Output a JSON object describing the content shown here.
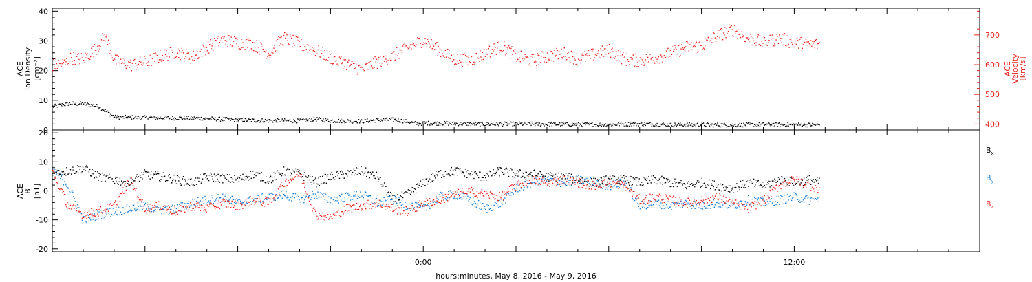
{
  "xlabel": "hours:minutes, May  8, 2016 - May  9, 2016",
  "x_axis": {
    "range_hours": [
      -12,
      18
    ],
    "major_ticks": [
      {
        "t": 0,
        "label": "0:00"
      },
      {
        "t": 12,
        "label": "12:00"
      }
    ]
  },
  "colors": {
    "black": "#000000",
    "red": "#e8231f",
    "blue": "#1a7fd4"
  },
  "chart_data": [
    {
      "type": "scatter",
      "panel": "top",
      "left_axis": {
        "label_lines": [
          "ACE",
          "Ion Density",
          "[cm⁻³]"
        ],
        "ylim": [
          0,
          41
        ],
        "ticks": [
          0,
          10,
          20,
          30,
          40
        ]
      },
      "right_axis": {
        "label_lines": [
          "ACE",
          "Velocity",
          "[km/s]"
        ],
        "ylim": [
          380,
          790
        ],
        "ticks": [
          400,
          500,
          600,
          700
        ]
      },
      "series": [
        {
          "color": "black",
          "axis": "left",
          "points": [
            [
              -12.0,
              8
            ],
            [
              -11.5,
              9
            ],
            [
              -11.0,
              9
            ],
            [
              -10.5,
              8
            ],
            [
              -10.0,
              4.5
            ],
            [
              -9.0,
              4.3
            ],
            [
              -8.0,
              4.2
            ],
            [
              -7.0,
              4.0
            ],
            [
              -6.0,
              3.5
            ],
            [
              -5.0,
              3.3
            ],
            [
              -4.0,
              3.2
            ],
            [
              -3.5,
              3.8
            ],
            [
              -3.0,
              3.3
            ],
            [
              -2.0,
              3.1
            ],
            [
              -1.5,
              3.5
            ],
            [
              -1.0,
              3.6
            ],
            [
              -0.5,
              3.0
            ],
            [
              -0.2,
              2.2
            ],
            [
              0.0,
              2.5
            ],
            [
              1.0,
              2.3
            ],
            [
              2.0,
              2.1
            ],
            [
              3.0,
              2.2
            ],
            [
              4.0,
              2.1
            ],
            [
              5.0,
              2.0
            ],
            [
              6.0,
              2.0
            ],
            [
              7.0,
              2.2
            ],
            [
              8.0,
              1.9
            ],
            [
              9.0,
              1.9
            ],
            [
              10.0,
              1.8
            ],
            [
              11.0,
              2.0
            ],
            [
              12.0,
              1.9
            ],
            [
              12.8,
              1.9
            ]
          ]
        },
        {
          "color": "red",
          "axis": "right",
          "points": [
            [
              -12.0,
              600
            ],
            [
              -11.6,
              605
            ],
            [
              -11.4,
              625
            ],
            [
              -11.0,
              620
            ],
            [
              -10.6,
              655
            ],
            [
              -10.3,
              700
            ],
            [
              -10.0,
              615
            ],
            [
              -9.5,
              600
            ],
            [
              -9.0,
              610
            ],
            [
              -8.5,
              630
            ],
            [
              -8.0,
              645
            ],
            [
              -7.5,
              625
            ],
            [
              -7.0,
              660
            ],
            [
              -6.5,
              685
            ],
            [
              -6.0,
              675
            ],
            [
              -5.5,
              670
            ],
            [
              -5.0,
              640
            ],
            [
              -4.7,
              675
            ],
            [
              -4.5,
              690
            ],
            [
              -4.0,
              670
            ],
            [
              -3.5,
              650
            ],
            [
              -3.0,
              625
            ],
            [
              -2.5,
              605
            ],
            [
              -2.0,
              585
            ],
            [
              -1.5,
              610
            ],
            [
              -1.0,
              630
            ],
            [
              -0.5,
              660
            ],
            [
              0.0,
              685
            ],
            [
              0.5,
              650
            ],
            [
              1.0,
              620
            ],
            [
              1.5,
              615
            ],
            [
              2.0,
              640
            ],
            [
              2.5,
              665
            ],
            [
              3.0,
              630
            ],
            [
              3.5,
              615
            ],
            [
              4.0,
              630
            ],
            [
              4.5,
              640
            ],
            [
              5.0,
              620
            ],
            [
              5.5,
              635
            ],
            [
              6.0,
              650
            ],
            [
              6.5,
              620
            ],
            [
              7.0,
              615
            ],
            [
              7.5,
              625
            ],
            [
              8.0,
              640
            ],
            [
              8.5,
              660
            ],
            [
              9.0,
              665
            ],
            [
              9.5,
              700
            ],
            [
              10.0,
              720
            ],
            [
              10.5,
              690
            ],
            [
              11.0,
              675
            ],
            [
              11.5,
              690
            ],
            [
              12.0,
              675
            ],
            [
              12.5,
              670
            ],
            [
              12.8,
              670
            ]
          ]
        }
      ]
    },
    {
      "type": "scatter",
      "panel": "bottom",
      "left_axis": {
        "label_lines": [
          "ACE",
          "B",
          "[nT]"
        ],
        "ylim": [
          -21,
          21
        ],
        "ticks": [
          -20,
          -10,
          0,
          10,
          20
        ]
      },
      "zero_line": true,
      "series": [
        {
          "name": "Bx",
          "color": "black",
          "points": [
            [
              -12.0,
              6
            ],
            [
              -11.5,
              7
            ],
            [
              -11.0,
              8
            ],
            [
              -10.5,
              5
            ],
            [
              -10.0,
              4
            ],
            [
              -9.5,
              3
            ],
            [
              -9.0,
              6
            ],
            [
              -8.5,
              5
            ],
            [
              -8.0,
              4
            ],
            [
              -7.5,
              3
            ],
            [
              -7.0,
              5
            ],
            [
              -6.0,
              4
            ],
            [
              -5.5,
              6
            ],
            [
              -5.0,
              4
            ],
            [
              -4.5,
              7
            ],
            [
              -4.0,
              6
            ],
            [
              -3.5,
              3
            ],
            [
              -3.0,
              5
            ],
            [
              -2.5,
              6
            ],
            [
              -2.0,
              7
            ],
            [
              -1.5,
              5
            ],
            [
              -1.0,
              -3
            ],
            [
              -0.5,
              -1
            ],
            [
              0.0,
              3
            ],
            [
              0.5,
              6
            ],
            [
              1.0,
              7
            ],
            [
              1.5,
              6
            ],
            [
              2.0,
              5
            ],
            [
              2.5,
              7
            ],
            [
              3.0,
              6
            ],
            [
              3.5,
              6
            ],
            [
              4.0,
              5
            ],
            [
              4.5,
              5
            ],
            [
              5.0,
              4
            ],
            [
              5.5,
              3
            ],
            [
              6.0,
              4
            ],
            [
              6.5,
              4
            ],
            [
              7.0,
              3
            ],
            [
              7.5,
              4
            ],
            [
              8.0,
              3
            ],
            [
              8.5,
              2
            ],
            [
              9.0,
              3
            ],
            [
              9.5,
              2
            ],
            [
              10.0,
              1
            ],
            [
              10.5,
              3
            ],
            [
              11.0,
              2
            ],
            [
              11.5,
              4
            ],
            [
              12.0,
              3
            ],
            [
              12.5,
              4
            ],
            [
              12.8,
              3
            ]
          ]
        },
        {
          "name": "By",
          "color": "blue",
          "points": [
            [
              -12.0,
              8
            ],
            [
              -11.5,
              2
            ],
            [
              -11.0,
              -10
            ],
            [
              -10.5,
              -8
            ],
            [
              -10.0,
              -7
            ],
            [
              -9.5,
              -6
            ],
            [
              -9.0,
              -5
            ],
            [
              -8.5,
              -7
            ],
            [
              -8.0,
              -6
            ],
            [
              -7.5,
              -4
            ],
            [
              -7.0,
              -3
            ],
            [
              -6.5,
              -2
            ],
            [
              -6.0,
              -4
            ],
            [
              -5.5,
              -3
            ],
            [
              -5.0,
              -2
            ],
            [
              -4.5,
              -1
            ],
            [
              -4.0,
              -3
            ],
            [
              -3.5,
              -1
            ],
            [
              -3.0,
              -3
            ],
            [
              -2.5,
              -2
            ],
            [
              -2.0,
              -1
            ],
            [
              -1.5,
              -4
            ],
            [
              -1.0,
              -3
            ],
            [
              -0.5,
              -5
            ],
            [
              0.0,
              -6
            ],
            [
              0.5,
              -2
            ],
            [
              1.0,
              -1
            ],
            [
              1.5,
              -3
            ],
            [
              2.0,
              -6
            ],
            [
              2.5,
              -4
            ],
            [
              3.0,
              1
            ],
            [
              3.5,
              3
            ],
            [
              4.0,
              4
            ],
            [
              4.5,
              3
            ],
            [
              5.0,
              4
            ],
            [
              5.5,
              3
            ],
            [
              6.0,
              2
            ],
            [
              6.5,
              3
            ],
            [
              7.0,
              -5
            ],
            [
              7.5,
              -4
            ],
            [
              8.0,
              -5
            ],
            [
              8.5,
              -4
            ],
            [
              9.0,
              -5
            ],
            [
              9.5,
              -4
            ],
            [
              10.0,
              -5
            ],
            [
              10.5,
              -3
            ],
            [
              11.0,
              -4
            ],
            [
              11.5,
              -3
            ],
            [
              12.0,
              -2
            ],
            [
              12.5,
              -3
            ],
            [
              12.8,
              -3
            ]
          ]
        },
        {
          "name": "Bz",
          "color": "red",
          "points": [
            [
              -12.0,
              7
            ],
            [
              -11.5,
              -5
            ],
            [
              -11.0,
              -8
            ],
            [
              -10.5,
              -7
            ],
            [
              -10.0,
              -5
            ],
            [
              -9.5,
              4
            ],
            [
              -9.0,
              -6
            ],
            [
              -8.5,
              -5
            ],
            [
              -8.0,
              -7
            ],
            [
              -7.5,
              -5
            ],
            [
              -7.0,
              -6
            ],
            [
              -6.5,
              -4
            ],
            [
              -6.0,
              -5
            ],
            [
              -5.5,
              -3
            ],
            [
              -5.0,
              -4
            ],
            [
              -4.5,
              3
            ],
            [
              -4.0,
              6
            ],
            [
              -3.5,
              -8
            ],
            [
              -3.0,
              -9
            ],
            [
              -2.5,
              -6
            ],
            [
              -2.0,
              -5
            ],
            [
              -1.5,
              -4
            ],
            [
              -1.0,
              -6
            ],
            [
              -0.5,
              -7
            ],
            [
              0.0,
              -4
            ],
            [
              0.5,
              -3
            ],
            [
              1.0,
              -1
            ],
            [
              1.5,
              0
            ],
            [
              2.0,
              -1
            ],
            [
              2.5,
              -2
            ],
            [
              3.0,
              2
            ],
            [
              3.5,
              4
            ],
            [
              4.0,
              3
            ],
            [
              4.5,
              4
            ],
            [
              5.0,
              3
            ],
            [
              5.5,
              2
            ],
            [
              6.0,
              3
            ],
            [
              6.5,
              2
            ],
            [
              7.0,
              -3
            ],
            [
              7.5,
              -2
            ],
            [
              8.0,
              -3
            ],
            [
              8.5,
              -4
            ],
            [
              9.0,
              -3
            ],
            [
              9.5,
              -2
            ],
            [
              10.0,
              -4
            ],
            [
              10.5,
              -6
            ],
            [
              11.0,
              -3
            ],
            [
              11.5,
              2
            ],
            [
              12.0,
              4
            ],
            [
              12.5,
              2
            ],
            [
              12.8,
              1
            ]
          ]
        }
      ],
      "legend": {
        "placement": "right",
        "entries": [
          {
            "base": "B",
            "sub": "x",
            "color": "black"
          },
          {
            "base": "B",
            "sub": "y",
            "color": "blue"
          },
          {
            "base": "B",
            "sub": "z",
            "color": "red"
          }
        ]
      }
    }
  ]
}
